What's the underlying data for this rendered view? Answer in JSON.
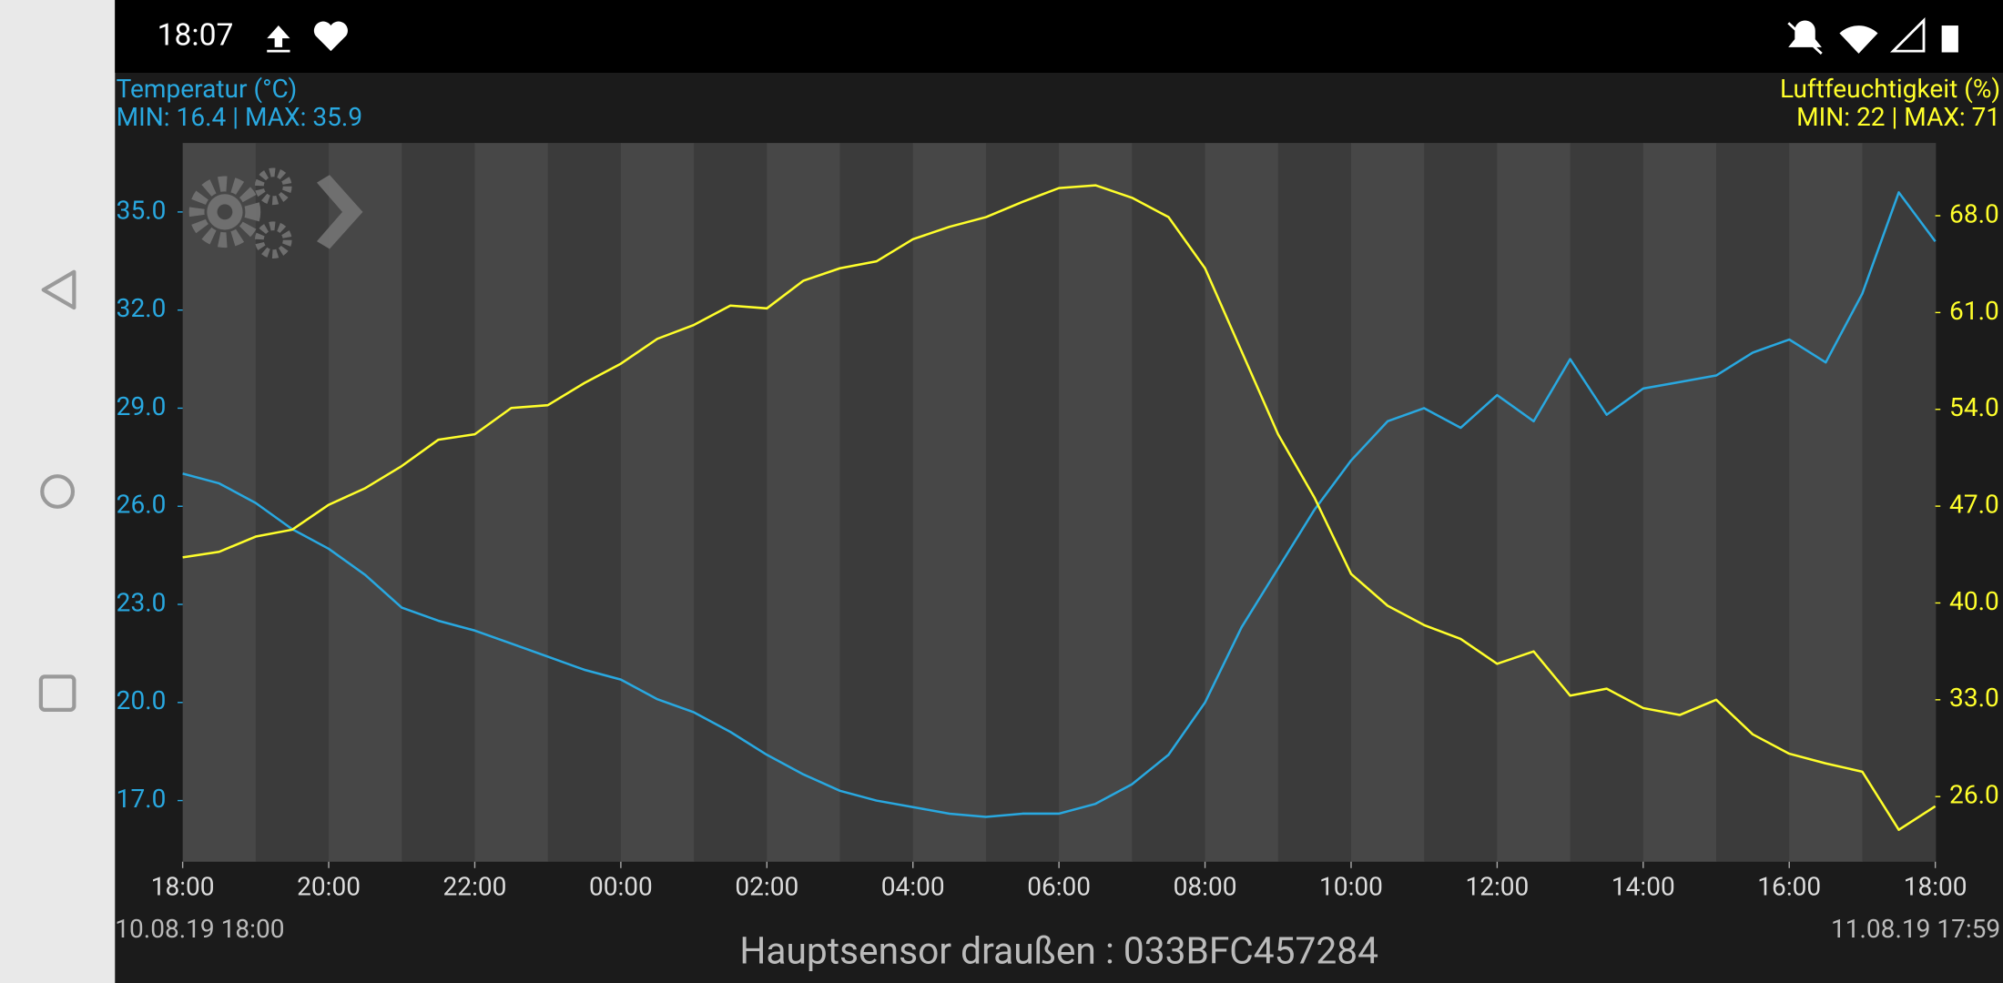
{
  "status_bar": {
    "time": "18:07"
  },
  "chart_data": {
    "type": "line",
    "title": "Hauptsensor draußen : 033BFC457284",
    "start_label": "10.08.19  18:00",
    "end_label": "11.08.19  17:59",
    "x": [
      0,
      0.5,
      1,
      1.5,
      2,
      2.5,
      3,
      3.5,
      4,
      4.5,
      5,
      5.5,
      6,
      6.5,
      7,
      7.5,
      8,
      8.5,
      9,
      9.5,
      10,
      10.5,
      11,
      11.5,
      12,
      12.5,
      13,
      13.5,
      14,
      14.5,
      15,
      15.5,
      16,
      16.5,
      17,
      17.5,
      18,
      18.5,
      19,
      19.5,
      20,
      20.5,
      21,
      21.5,
      22,
      22.5,
      23,
      23.5,
      24
    ],
    "xlim": [
      0,
      24
    ],
    "xticks": [
      {
        "value": 0,
        "label": "18:00"
      },
      {
        "value": 2,
        "label": "20:00"
      },
      {
        "value": 4,
        "label": "22:00"
      },
      {
        "value": 6,
        "label": "00:00"
      },
      {
        "value": 8,
        "label": "02:00"
      },
      {
        "value": 10,
        "label": "04:00"
      },
      {
        "value": 12,
        "label": "06:00"
      },
      {
        "value": 14,
        "label": "08:00"
      },
      {
        "value": 16,
        "label": "10:00"
      },
      {
        "value": 18,
        "label": "12:00"
      },
      {
        "value": 20,
        "label": "14:00"
      },
      {
        "value": 22,
        "label": "16:00"
      },
      {
        "value": 24,
        "label": "18:00"
      }
    ],
    "ylim": [
      15.13,
      37.11
    ],
    "yticks": [
      {
        "value": 17,
        "label": "17.0"
      },
      {
        "value": 20,
        "label": "20.0"
      },
      {
        "value": 23,
        "label": "23.0"
      },
      {
        "value": 26,
        "label": "26.0"
      },
      {
        "value": 29,
        "label": "29.0"
      },
      {
        "value": 32,
        "label": "32.0"
      },
      {
        "value": 35,
        "label": "35.0"
      }
    ],
    "y2lim": [
      21.29,
      73.26
    ],
    "y2ticks": [
      {
        "value": 26,
        "label": "26.0"
      },
      {
        "value": 33,
        "label": "33.0"
      },
      {
        "value": 40,
        "label": "40.0"
      },
      {
        "value": 47,
        "label": "47.0"
      },
      {
        "value": 54,
        "label": "54.0"
      },
      {
        "value": 61,
        "label": "61.0"
      },
      {
        "value": 68,
        "label": "68.0"
      }
    ],
    "series": [
      {
        "name": "Temperatur (°C)",
        "summary": "MIN: 16.4 | MAX: 35.9",
        "color": "#29a8e0",
        "axis": "y",
        "values": [
          27.0,
          26.7,
          26.1,
          25.3,
          24.7,
          23.9,
          22.9,
          22.5,
          22.2,
          21.8,
          21.4,
          21.0,
          20.7,
          20.1,
          19.7,
          19.1,
          18.4,
          17.8,
          17.3,
          17.0,
          16.8,
          16.6,
          16.5,
          16.6,
          16.6,
          16.9,
          17.5,
          18.4,
          20.0,
          22.3,
          24.1,
          25.9,
          27.4,
          28.6,
          29.0,
          28.4,
          29.4,
          28.6,
          30.5,
          28.8,
          29.6,
          29.8,
          30.0,
          30.7,
          31.1,
          30.4,
          32.5,
          35.6,
          34.1
        ]
      },
      {
        "name": "Luftfeuchtigkeit (%)",
        "summary": "MIN: 22 | MAX: 71",
        "color": "#ffff2b",
        "axis": "y2",
        "values": [
          43.3,
          43.7,
          44.8,
          45.3,
          47.1,
          48.3,
          49.9,
          51.8,
          52.2,
          54.1,
          54.3,
          55.9,
          57.3,
          59.1,
          60.1,
          61.5,
          61.3,
          63.3,
          64.2,
          64.7,
          66.3,
          67.2,
          67.9,
          69.0,
          70.0,
          70.2,
          69.3,
          67.9,
          64.2,
          58.2,
          52.2,
          47.6,
          42.1,
          39.8,
          38.4,
          37.4,
          35.6,
          36.5,
          33.3,
          33.8,
          32.4,
          31.9,
          33.0,
          30.5,
          29.1,
          28.4,
          27.8,
          23.6,
          25.3
        ]
      }
    ]
  }
}
